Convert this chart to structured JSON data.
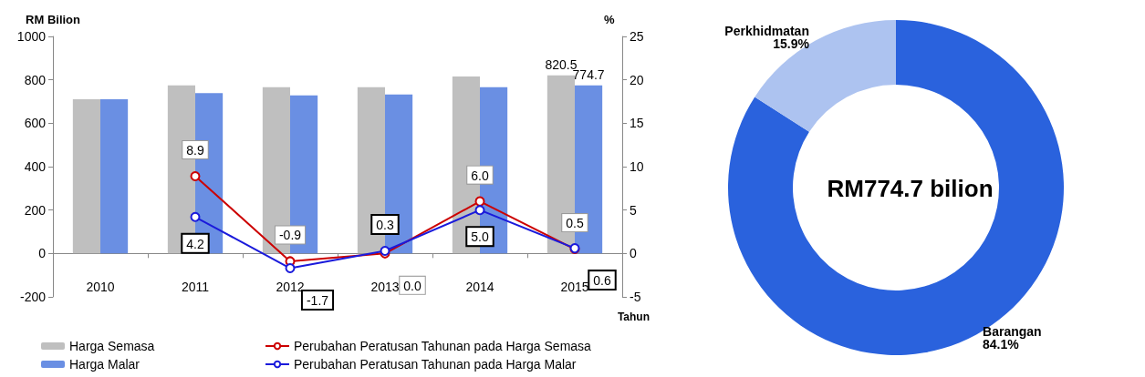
{
  "chart_data": [
    {
      "type": "bar",
      "xlabel": "Tahun",
      "ylabel": "RM Bilion",
      "y2label": "%",
      "categories": [
        "2010",
        "2011",
        "2012",
        "2013",
        "2014",
        "2015"
      ],
      "series": [
        {
          "name": "Harga Semasa",
          "type": "bar",
          "color": "#bfbfbf",
          "values": [
            710,
            774,
            766,
            766,
            815,
            820.5
          ],
          "value_labels": [
            null,
            null,
            null,
            null,
            null,
            "820.5"
          ]
        },
        {
          "name": "Harga Malar",
          "type": "bar",
          "color": "#6a8fe3",
          "values": [
            710,
            739,
            728,
            732,
            766,
            774.7
          ],
          "value_labels": [
            null,
            null,
            null,
            null,
            null,
            "774.7"
          ]
        },
        {
          "name": "Perubahan Peratusan Tahunan pada Harga Semasa",
          "type": "line",
          "axis": "y2",
          "color": "#cc0000",
          "values": [
            null,
            8.9,
            -0.9,
            0.0,
            6.0,
            0.5
          ],
          "value_labels": [
            null,
            "8.9",
            "-0.9",
            "0.0",
            "6.0",
            "0.5"
          ]
        },
        {
          "name": "Perubahan Peratusan Tahunan pada Harga Malar",
          "type": "line",
          "axis": "y2",
          "color": "#1a1adb",
          "values": [
            null,
            4.2,
            -1.7,
            0.3,
            5.0,
            0.6
          ],
          "value_labels": [
            null,
            "4.2",
            "-1.7",
            "0.3",
            "5.0",
            "0.6"
          ]
        }
      ],
      "ylim": [
        -200,
        1000
      ],
      "yticks": [
        -200,
        0,
        200,
        400,
        600,
        800,
        1000
      ],
      "y2lim": [
        -5,
        25
      ],
      "y2ticks": [
        -5,
        0,
        5,
        10,
        15,
        20,
        25
      ],
      "marker": "circle",
      "grid": false,
      "legend": "bottom"
    },
    {
      "type": "donut",
      "categories": [
        "Barangan",
        "Perkhidmatan"
      ],
      "values": [
        84.1,
        15.9
      ],
      "colors": [
        "#2a62dd",
        "#adc3f0"
      ],
      "value_labels": [
        "84.1%",
        "15.9%"
      ],
      "annotations": [
        "RM774.7 bilion"
      ]
    }
  ]
}
